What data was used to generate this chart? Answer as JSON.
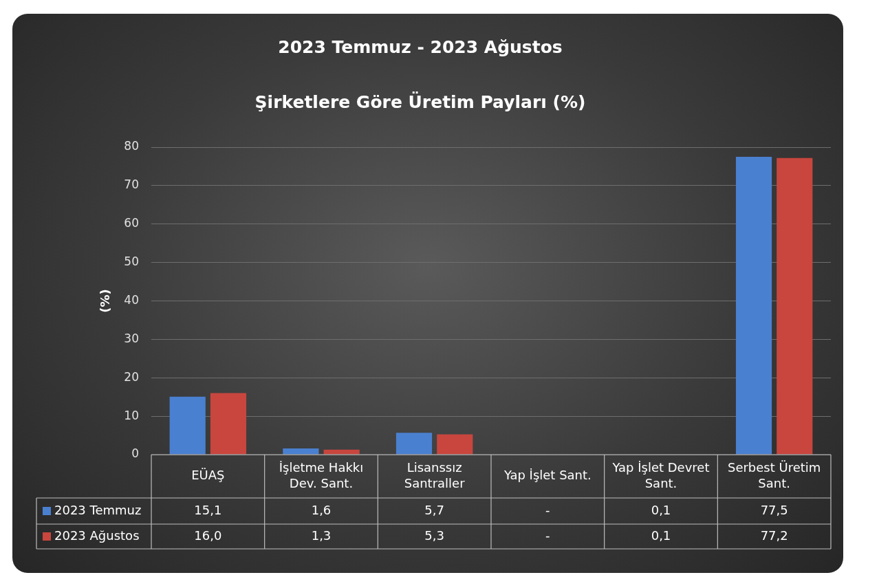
{
  "chart_data": {
    "type": "bar",
    "title": "2023 Temmuz - 2023 Ağustos",
    "subtitle": "Şirketlere Göre Üretim Payları (%)",
    "ylabel": "(%)",
    "categories": [
      "EÜAŞ",
      "İşletme Hakkı Dev. Sant.",
      "Lisanssız Santraller",
      "Yap İşlet Sant.",
      "Yap İşlet Devret Sant.",
      "Serbest Üretim Sant."
    ],
    "series": [
      {
        "name": "2023 Temmuz",
        "color": "#4a80d0",
        "values": [
          15.1,
          1.6,
          5.7,
          null,
          0.1,
          77.5
        ],
        "value_labels": [
          "15,1",
          "1,6",
          "5,7",
          "-",
          "0,1",
          "77,5"
        ]
      },
      {
        "name": "2023 Ağustos",
        "color": "#c8463e",
        "values": [
          16.0,
          1.3,
          5.3,
          null,
          0.1,
          77.2
        ],
        "value_labels": [
          "16,0",
          "1,3",
          "5,3",
          "-",
          "0,1",
          "77,2"
        ]
      }
    ],
    "ylim": [
      0,
      80
    ],
    "yticks": [
      0,
      10,
      20,
      30,
      40,
      50,
      60,
      70,
      80
    ],
    "grid": "y",
    "legend": "bottom left"
  }
}
